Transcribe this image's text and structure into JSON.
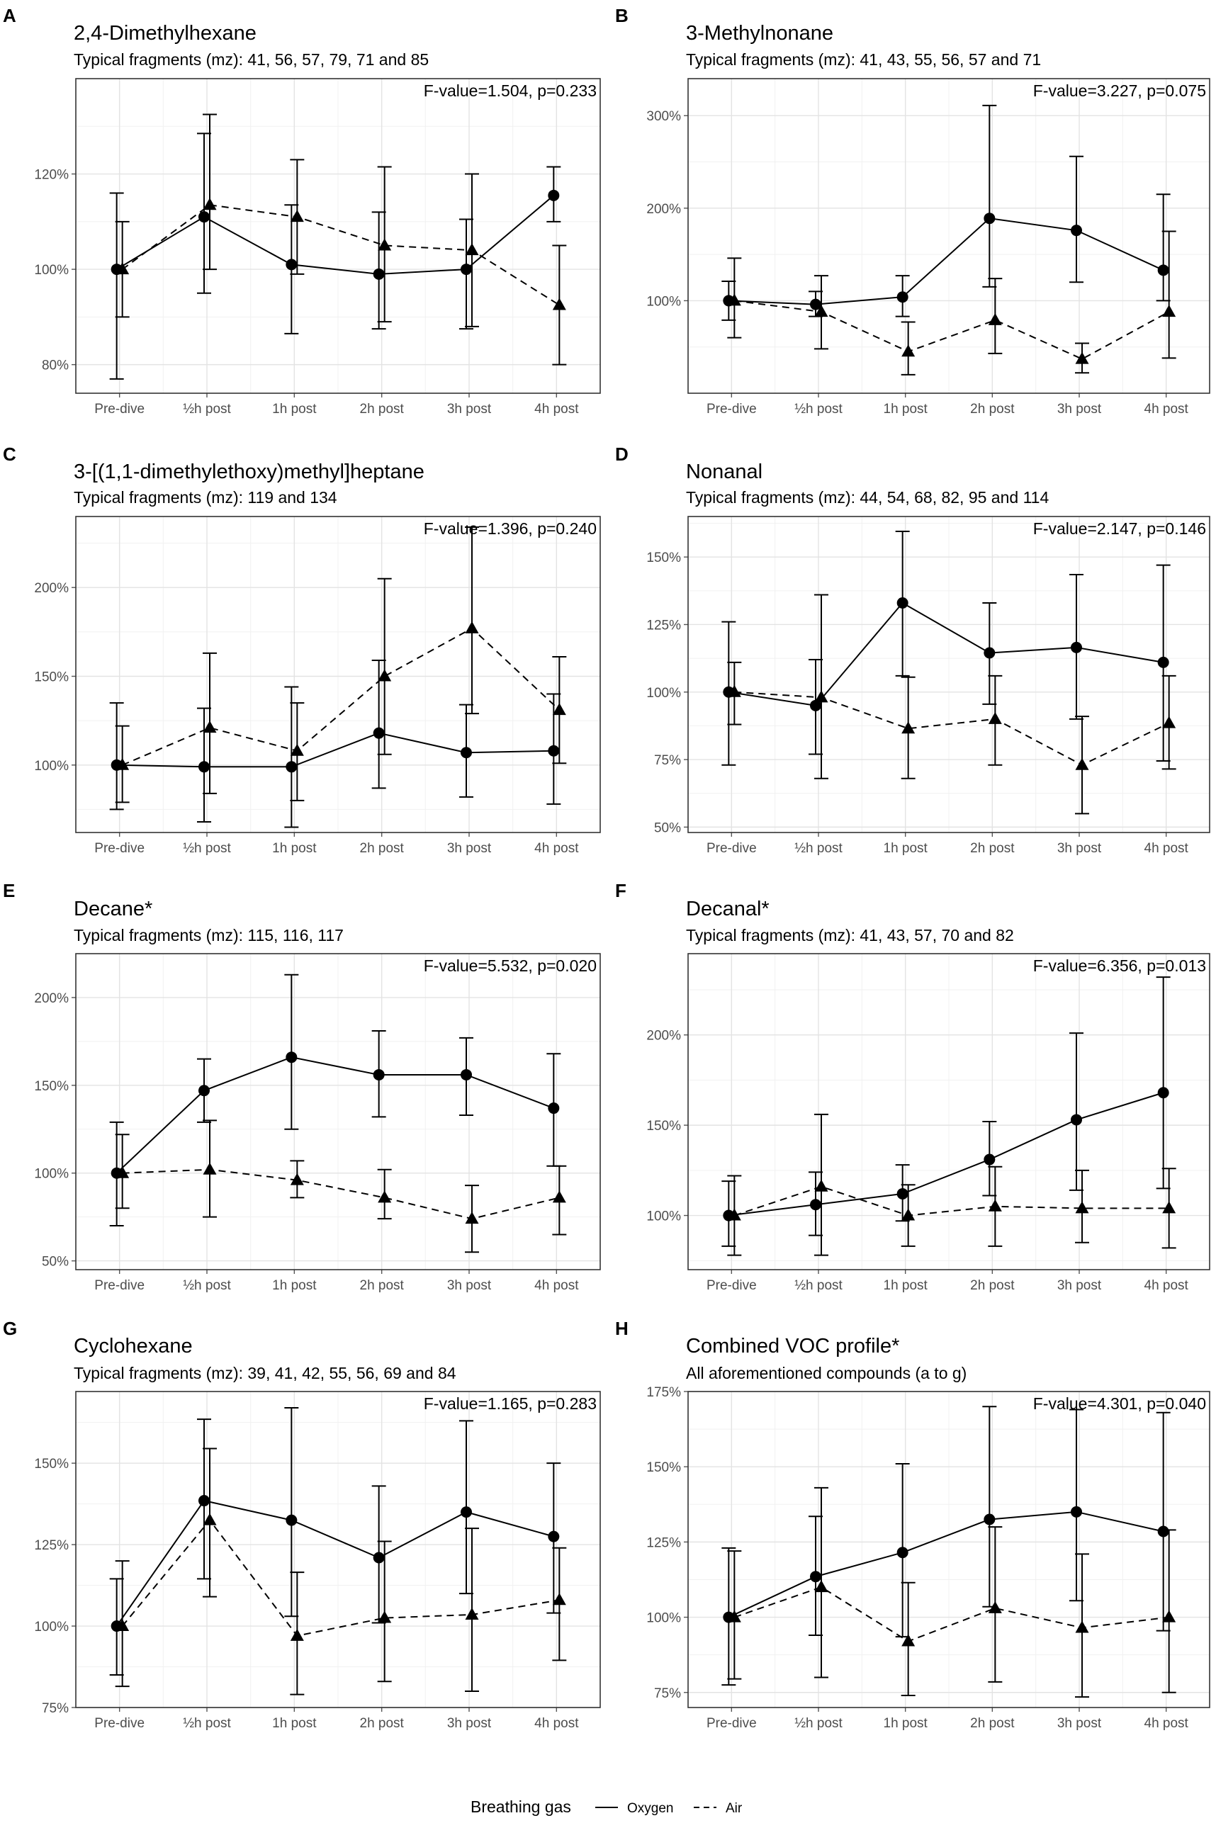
{
  "legend": {
    "title": "Breathing gas",
    "entries": [
      {
        "label": "Oxygen",
        "linetype": "solid"
      },
      {
        "label": "Air",
        "linetype": "dashed"
      }
    ]
  },
  "chart_data": [
    {
      "letter": "A",
      "type": "line",
      "title": "2,4-Dimethylhexane",
      "subtitle": "Typical fragments (mz): 41, 56, 57, 79, 71 and 85",
      "stat": "F-value=1.504, p=0.233",
      "categories": [
        "Pre-dive",
        "½h post",
        "1h post",
        "2h post",
        "3h post",
        "4h post"
      ],
      "ylim": [
        74,
        140
      ],
      "yticks": [
        80,
        100,
        120
      ],
      "ytick_labels": [
        "80%",
        "100%",
        "120%"
      ],
      "series": [
        {
          "name": "Oxygen",
          "marker": "circle",
          "values": [
            100,
            111,
            101,
            99,
            100,
            115.5
          ],
          "lower": [
            77,
            95,
            86.5,
            87.5,
            87.5,
            110
          ],
          "upper": [
            116,
            128.5,
            113.5,
            112,
            110.5,
            121.5
          ]
        },
        {
          "name": "Air",
          "marker": "triangle",
          "values": [
            100,
            113.5,
            111,
            105,
            104,
            92.5
          ],
          "lower": [
            90,
            100,
            99,
            89,
            88,
            80
          ],
          "upper": [
            110,
            132.5,
            123,
            121.5,
            120,
            105
          ]
        }
      ]
    },
    {
      "letter": "B",
      "type": "line",
      "title": "3-Methylnonane",
      "subtitle": "Typical fragments (mz): 41, 43, 55, 56, 57 and 71",
      "stat": "F-value=3.227, p=0.075",
      "categories": [
        "Pre-dive",
        "½h post",
        "1h post",
        "2h post",
        "3h post",
        "4h post"
      ],
      "ylim": [
        0,
        340
      ],
      "yticks": [
        100,
        200,
        300
      ],
      "ytick_labels": [
        "100%",
        "200%",
        "300%"
      ],
      "series": [
        {
          "name": "Oxygen",
          "marker": "circle",
          "values": [
            100,
            96,
            104,
            189,
            176,
            133
          ],
          "lower": [
            79,
            83,
            83,
            115,
            120,
            100
          ],
          "upper": [
            121,
            110,
            127,
            311,
            256,
            215
          ]
        },
        {
          "name": "Air",
          "marker": "triangle",
          "values": [
            100,
            88,
            45,
            79,
            37,
            88
          ],
          "lower": [
            60,
            48,
            20,
            43,
            22,
            38
          ],
          "upper": [
            146,
            127,
            77,
            124,
            54,
            175
          ]
        }
      ]
    },
    {
      "letter": "C",
      "type": "line",
      "title": "3-[(1,1-dimethylethoxy)methyl]heptane",
      "subtitle": "Typical fragments (mz): 119 and 134",
      "stat": "F-value=1.396, p=0.240",
      "categories": [
        "Pre-dive",
        "½h post",
        "1h post",
        "2h post",
        "3h post",
        "4h post"
      ],
      "ylim": [
        62,
        240
      ],
      "yticks": [
        100,
        150,
        200
      ],
      "ytick_labels": [
        "100%",
        "150%",
        "200%"
      ],
      "series": [
        {
          "name": "Oxygen",
          "marker": "circle",
          "values": [
            100,
            99,
            99,
            118,
            107,
            108
          ],
          "lower": [
            75,
            68,
            65,
            87,
            82,
            78
          ],
          "upper": [
            135,
            132,
            144,
            159,
            134,
            140
          ]
        },
        {
          "name": "Air",
          "marker": "triangle",
          "values": [
            100,
            121,
            108,
            150,
            177,
            131
          ],
          "lower": [
            79,
            84,
            80,
            106,
            129,
            101
          ],
          "upper": [
            122,
            163,
            135,
            205,
            234,
            161
          ]
        }
      ]
    },
    {
      "letter": "D",
      "type": "line",
      "title": "Nonanal",
      "subtitle": "Typical fragments (mz): 44, 54, 68, 82, 95 and 114",
      "stat": "F-value=2.147, p=0.146",
      "categories": [
        "Pre-dive",
        "½h post",
        "1h post",
        "2h post",
        "3h post",
        "4h post"
      ],
      "ylim": [
        48,
        165
      ],
      "yticks": [
        50,
        75,
        100,
        125,
        150
      ],
      "ytick_labels": [
        "50%",
        "75%",
        "100%",
        "125%",
        "150%"
      ],
      "series": [
        {
          "name": "Oxygen",
          "marker": "circle",
          "values": [
            100,
            95,
            133,
            114.5,
            116.5,
            111
          ],
          "lower": [
            73,
            77,
            106,
            95.5,
            90,
            74.5
          ],
          "upper": [
            126,
            112,
            159.5,
            133,
            143.5,
            147
          ]
        },
        {
          "name": "Air",
          "marker": "triangle",
          "values": [
            100,
            98,
            86.5,
            90,
            73,
            88.5
          ],
          "lower": [
            88,
            68,
            68,
            73,
            55,
            71.5
          ],
          "upper": [
            111,
            136,
            105.5,
            106,
            91,
            106
          ]
        }
      ]
    },
    {
      "letter": "E",
      "type": "line",
      "title": "Decane*",
      "subtitle": "Typical fragments (mz): 115, 116, 117",
      "stat": "F-value=5.532, p=0.020",
      "categories": [
        "Pre-dive",
        "½h post",
        "1h post",
        "2h post",
        "3h post",
        "4h post"
      ],
      "ylim": [
        45,
        225
      ],
      "yticks": [
        50,
        100,
        150,
        200
      ],
      "ytick_labels": [
        "50%",
        "100%",
        "150%",
        "200%"
      ],
      "series": [
        {
          "name": "Oxygen",
          "marker": "circle",
          "values": [
            100,
            147,
            166,
            156,
            156,
            137
          ],
          "lower": [
            70,
            129,
            125,
            132,
            133,
            104
          ],
          "upper": [
            129,
            165,
            213,
            181,
            177,
            168
          ]
        },
        {
          "name": "Air",
          "marker": "triangle",
          "values": [
            100,
            102,
            96,
            86,
            74,
            86
          ],
          "lower": [
            80,
            75,
            86,
            74,
            55,
            65
          ],
          "upper": [
            122,
            130,
            107,
            102,
            93,
            104
          ]
        }
      ]
    },
    {
      "letter": "F",
      "type": "line",
      "title": "Decanal*",
      "subtitle": "Typical fragments (mz): 41, 43, 57, 70 and 82",
      "stat": "F-value=6.356, p=0.013",
      "categories": [
        "Pre-dive",
        "½h post",
        "1h post",
        "2h post",
        "3h post",
        "4h post"
      ],
      "ylim": [
        70,
        245
      ],
      "yticks": [
        100,
        150,
        200
      ],
      "ytick_labels": [
        "100%",
        "150%",
        "200%"
      ],
      "series": [
        {
          "name": "Oxygen",
          "marker": "circle",
          "values": [
            100,
            106,
            112,
            131,
            153,
            168
          ],
          "lower": [
            83,
            89,
            97,
            111,
            114,
            115
          ],
          "upper": [
            119,
            124,
            128,
            152,
            201,
            232
          ]
        },
        {
          "name": "Air",
          "marker": "triangle",
          "values": [
            100,
            116,
            100,
            105,
            104,
            104
          ],
          "lower": [
            78,
            78,
            83,
            83,
            85,
            82
          ],
          "upper": [
            122,
            156,
            117,
            127,
            125,
            126
          ]
        }
      ]
    },
    {
      "letter": "G",
      "type": "line",
      "title": "Cyclohexane",
      "subtitle": "Typical fragments (mz): 39, 41, 42, 55, 56, 69 and 84",
      "stat": "F-value=1.165, p=0.283",
      "categories": [
        "Pre-dive",
        "½h post",
        "1h post",
        "2h post",
        "3h post",
        "4h post"
      ],
      "ylim": [
        75,
        172
      ],
      "yticks": [
        75,
        100,
        125,
        150
      ],
      "ytick_labels": [
        "75%",
        "100%",
        "125%",
        "150%"
      ],
      "series": [
        {
          "name": "Oxygen",
          "marker": "circle",
          "values": [
            100,
            138.5,
            132.5,
            121,
            135,
            127.5
          ],
          "lower": [
            85,
            114.5,
            103,
            101,
            110,
            104
          ],
          "upper": [
            114.5,
            163.5,
            167,
            143,
            163,
            150
          ]
        },
        {
          "name": "Air",
          "marker": "triangle",
          "values": [
            100,
            132.5,
            97,
            102.5,
            103.5,
            108
          ],
          "lower": [
            81.5,
            109,
            79,
            83,
            80,
            89.5
          ],
          "upper": [
            120,
            154.5,
            116.5,
            126,
            130,
            124
          ]
        }
      ]
    },
    {
      "letter": "H",
      "type": "line",
      "title": "Combined VOC profile*",
      "subtitle": "All aforementioned compounds (a to g)",
      "stat": "F-value=4.301, p=0.040",
      "categories": [
        "Pre-dive",
        "½h post",
        "1h post",
        "2h post",
        "3h post",
        "4h post"
      ],
      "ylim": [
        70,
        175
      ],
      "yticks": [
        75,
        100,
        125,
        150,
        175
      ],
      "ytick_labels": [
        "75%",
        "100%",
        "125%",
        "150%",
        "175%"
      ],
      "series": [
        {
          "name": "Oxygen",
          "marker": "circle",
          "values": [
            100,
            113.5,
            121.5,
            132.5,
            135,
            128.5
          ],
          "lower": [
            77.5,
            94,
            93.5,
            103.5,
            105.5,
            95.5
          ],
          "upper": [
            123,
            133.5,
            151,
            170,
            169,
            168
          ]
        },
        {
          "name": "Air",
          "marker": "triangle",
          "values": [
            100,
            110,
            92,
            103,
            96.5,
            100
          ],
          "lower": [
            79.5,
            80,
            74,
            78.5,
            73.5,
            75
          ],
          "upper": [
            122,
            143,
            111.5,
            130,
            121,
            129
          ]
        }
      ]
    }
  ]
}
